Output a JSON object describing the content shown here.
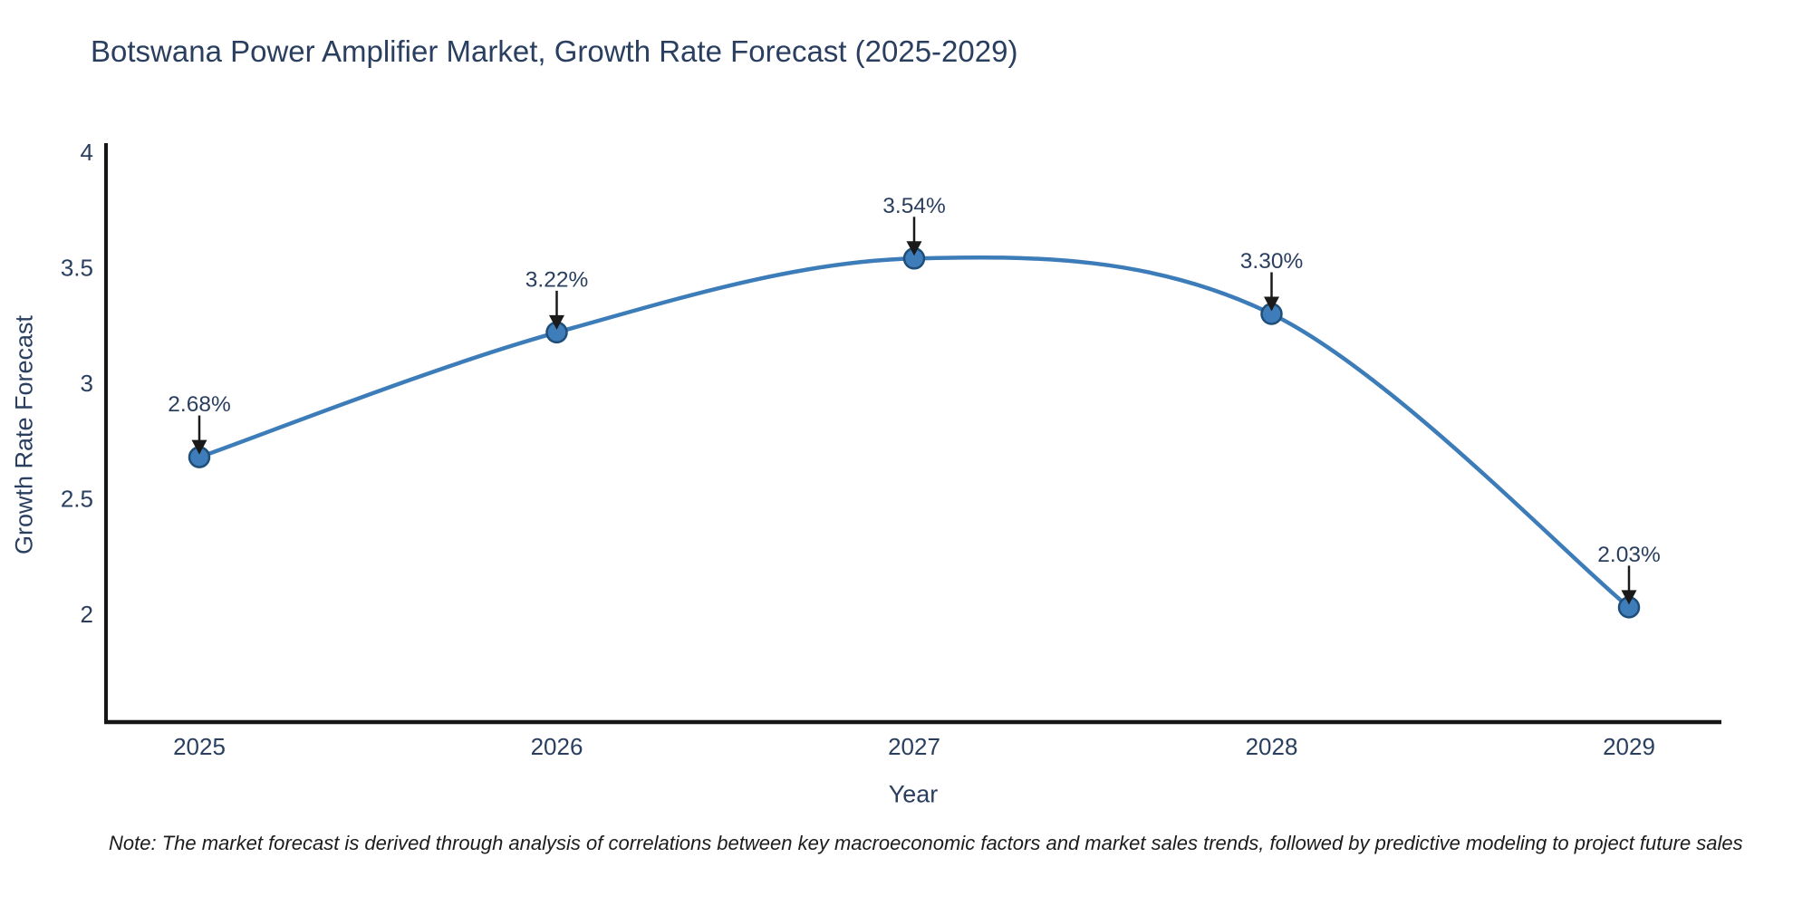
{
  "title": "Botswana Power Amplifier Market, Growth Rate Forecast (2025-2029)",
  "note": "Note: The market forecast is derived through analysis of correlations between key macroeconomic factors and market sales trends, followed by predictive modeling to project future sales",
  "chart_data": {
    "type": "line",
    "line_shape": "spline",
    "title": "Botswana Power Amplifier Market, Growth Rate Forecast (2025-2029)",
    "xlabel": "Year",
    "ylabel": "Growth Rate Forecast",
    "categories": [
      2025,
      2026,
      2027,
      2028,
      2029
    ],
    "values": [
      2.68,
      3.22,
      3.54,
      3.3,
      2.03
    ],
    "point_labels": [
      "2.68%",
      "3.22%",
      "3.54%",
      "3.30%",
      "2.03%"
    ],
    "yticks": [
      2,
      2.5,
      3,
      3.5,
      4
    ],
    "ylim": [
      1.53,
      4.04
    ],
    "grid": false,
    "legend": "none",
    "colors": {
      "line": "#3c7cb8",
      "marker_fill": "#3e7cba",
      "marker_border": "#1f4e79",
      "axis_line": "#161616",
      "axis_text": "#2a3f5f",
      "annotation_arrow": "#1a1a1a",
      "background": "#ffffff"
    }
  }
}
